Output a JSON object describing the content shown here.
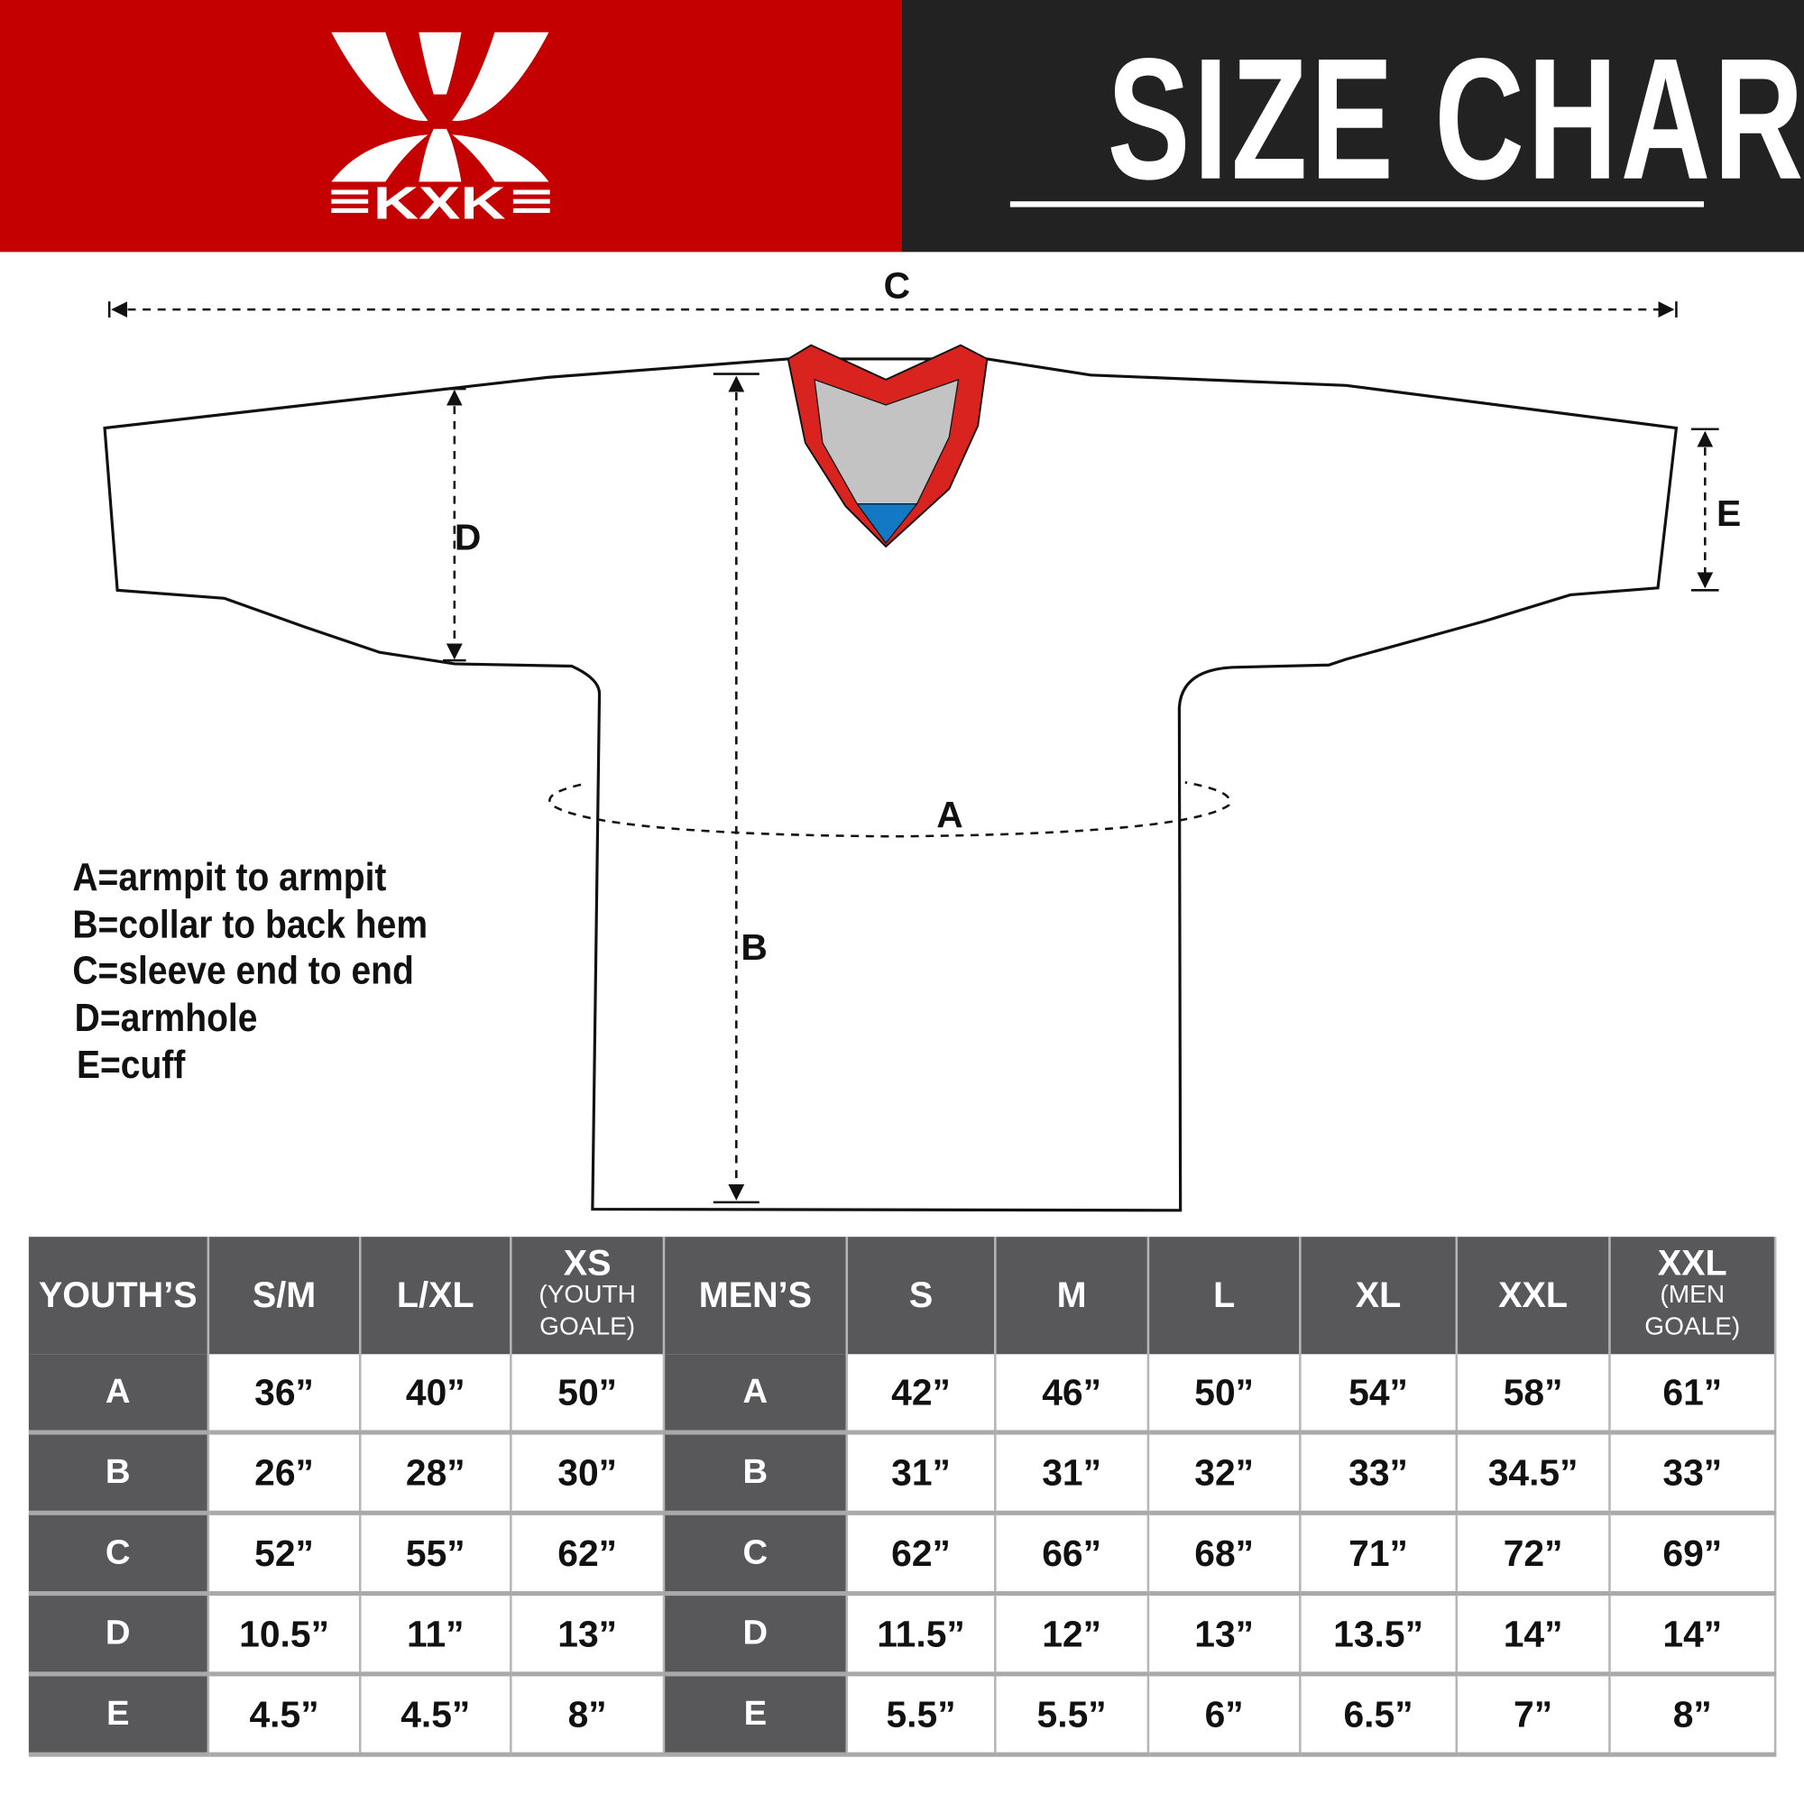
{
  "brand": {
    "logo_text": "KXK",
    "header_red": "#c50000",
    "header_dark": "#222222"
  },
  "title": "SIZE CHART",
  "diagram": {
    "labels": {
      "a": "A",
      "b": "B",
      "c": "C",
      "d": "D",
      "e": "E"
    },
    "collar_colors": {
      "trim": "#d9231f",
      "inner": "#c3c3c3",
      "accent": "#1479c4"
    }
  },
  "legend": [
    "A=armpit to armpit",
    "B=collar to back hem",
    "C=sleeve end to end",
    "D=armhole",
    "E=cuff"
  ],
  "table": {
    "headers": [
      {
        "main": "YOUTH’S"
      },
      {
        "main": "S/M"
      },
      {
        "main": "L/XL"
      },
      {
        "main": "XS",
        "sub1": "(YOUTH",
        "sub2": "GOALE)"
      },
      {
        "main": "MEN’S"
      },
      {
        "main": "S"
      },
      {
        "main": "M"
      },
      {
        "main": "L"
      },
      {
        "main": "XL"
      },
      {
        "main": "XXL"
      },
      {
        "main": "XXL",
        "sub1": "(MEN",
        "sub2": "GOALE)"
      }
    ],
    "rows": [
      {
        "youth_label": "A",
        "youth": [
          "36”",
          "40”",
          "50”"
        ],
        "men_label": "A",
        "men": [
          "42”",
          "46”",
          "50”",
          "54”",
          "58”",
          "61”"
        ]
      },
      {
        "youth_label": "B",
        "youth": [
          "26”",
          "28”",
          "30”"
        ],
        "men_label": "B",
        "men": [
          "31”",
          "31”",
          "32”",
          "33”",
          "34.5”",
          "33”"
        ]
      },
      {
        "youth_label": "C",
        "youth": [
          "52”",
          "55”",
          "62”"
        ],
        "men_label": "C",
        "men": [
          "62”",
          "66”",
          "68”",
          "71”",
          "72”",
          "69”"
        ]
      },
      {
        "youth_label": "D",
        "youth": [
          "10.5”",
          "11”",
          "13”"
        ],
        "men_label": "D",
        "men": [
          "11.5”",
          "12”",
          "13”",
          "13.5”",
          "14”",
          "14”"
        ]
      },
      {
        "youth_label": "E",
        "youth": [
          "4.5”",
          "4.5”",
          "8”"
        ],
        "men_label": "E",
        "men": [
          "5.5”",
          "5.5”",
          "6”",
          "6.5”",
          "7”",
          "8”"
        ]
      }
    ]
  }
}
